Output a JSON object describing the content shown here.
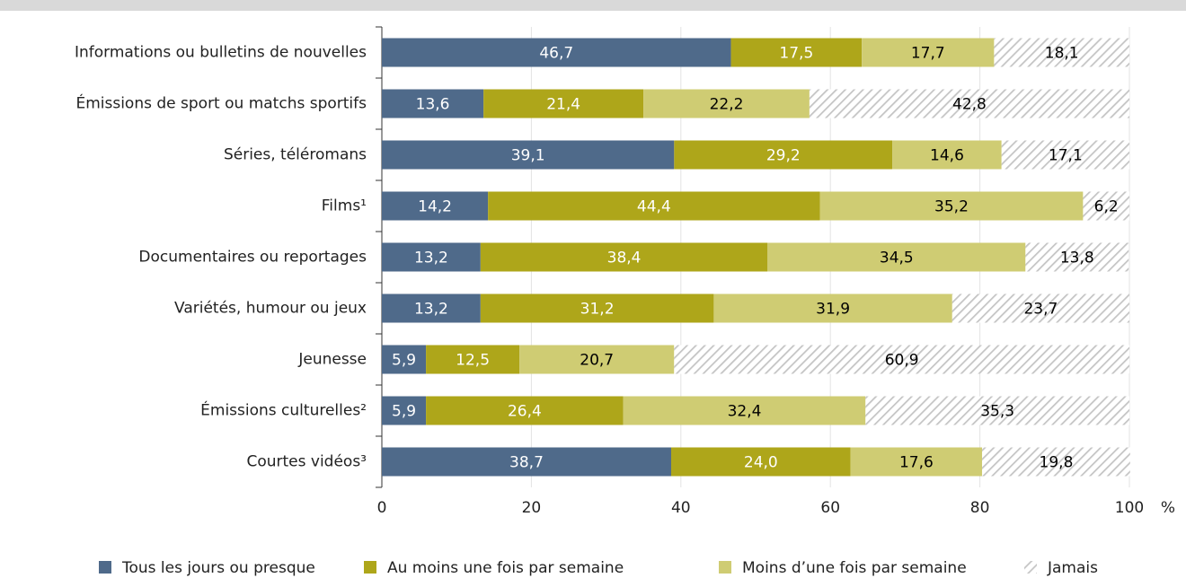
{
  "chart_data": {
    "type": "stacked_barh",
    "categories": [
      "Informations ou bulletins de nouvelles",
      "Émissions de sport ou matchs sportifs",
      "Séries, téléromans",
      "Films¹",
      "Documentaires ou reportages",
      "Variétés, humour ou jeux",
      "Jeunesse",
      "Émissions culturelles²",
      "Courtes vidéos³"
    ],
    "series": [
      {
        "name": "Tous les jours ou presque",
        "color": "#4f6a8a",
        "label_color": "#ffffff",
        "values": [
          46.7,
          13.6,
          39.1,
          14.2,
          13.2,
          13.2,
          5.9,
          5.9,
          38.7
        ],
        "value_labels": [
          "46,7",
          "13,6",
          "39,1",
          "14,2",
          "13,2",
          "13,2",
          "5,9",
          "5,9",
          "38,7"
        ]
      },
      {
        "name": "Au moins une fois par semaine",
        "color": "#aea61a",
        "label_color": "#ffffff",
        "values": [
          17.5,
          21.4,
          29.2,
          44.4,
          38.4,
          31.2,
          12.5,
          26.4,
          24.0
        ],
        "value_labels": [
          "17,5",
          "21,4",
          "29,2",
          "44,4",
          "38,4",
          "31,2",
          "12,5",
          "26,4",
          "24,0"
        ]
      },
      {
        "name": "Moins d’une fois par semaine",
        "color": "#cfcc73",
        "label_color": "#000000",
        "values": [
          17.7,
          22.2,
          14.6,
          35.2,
          34.5,
          31.9,
          20.7,
          32.4,
          17.6
        ],
        "value_labels": [
          "17,7",
          "22,2",
          "14,6",
          "35,2",
          "34,5",
          "31,9",
          "20,7",
          "32,4",
          "17,6"
        ]
      },
      {
        "name": "Jamais",
        "color": "#c4c4c4",
        "pattern": "hatch",
        "label_color": "#000000",
        "values": [
          18.1,
          42.8,
          17.1,
          6.2,
          13.8,
          23.7,
          60.9,
          35.3,
          19.8
        ],
        "value_labels": [
          "18,1",
          "42,8",
          "17,1",
          "6,2",
          "13,8",
          "23,7",
          "60,9",
          "35,3",
          "19,8"
        ]
      }
    ],
    "xlim": [
      0,
      100
    ],
    "xticks": [
      0,
      20,
      40,
      60,
      80,
      100
    ],
    "xlabel": "%",
    "grid": true
  }
}
